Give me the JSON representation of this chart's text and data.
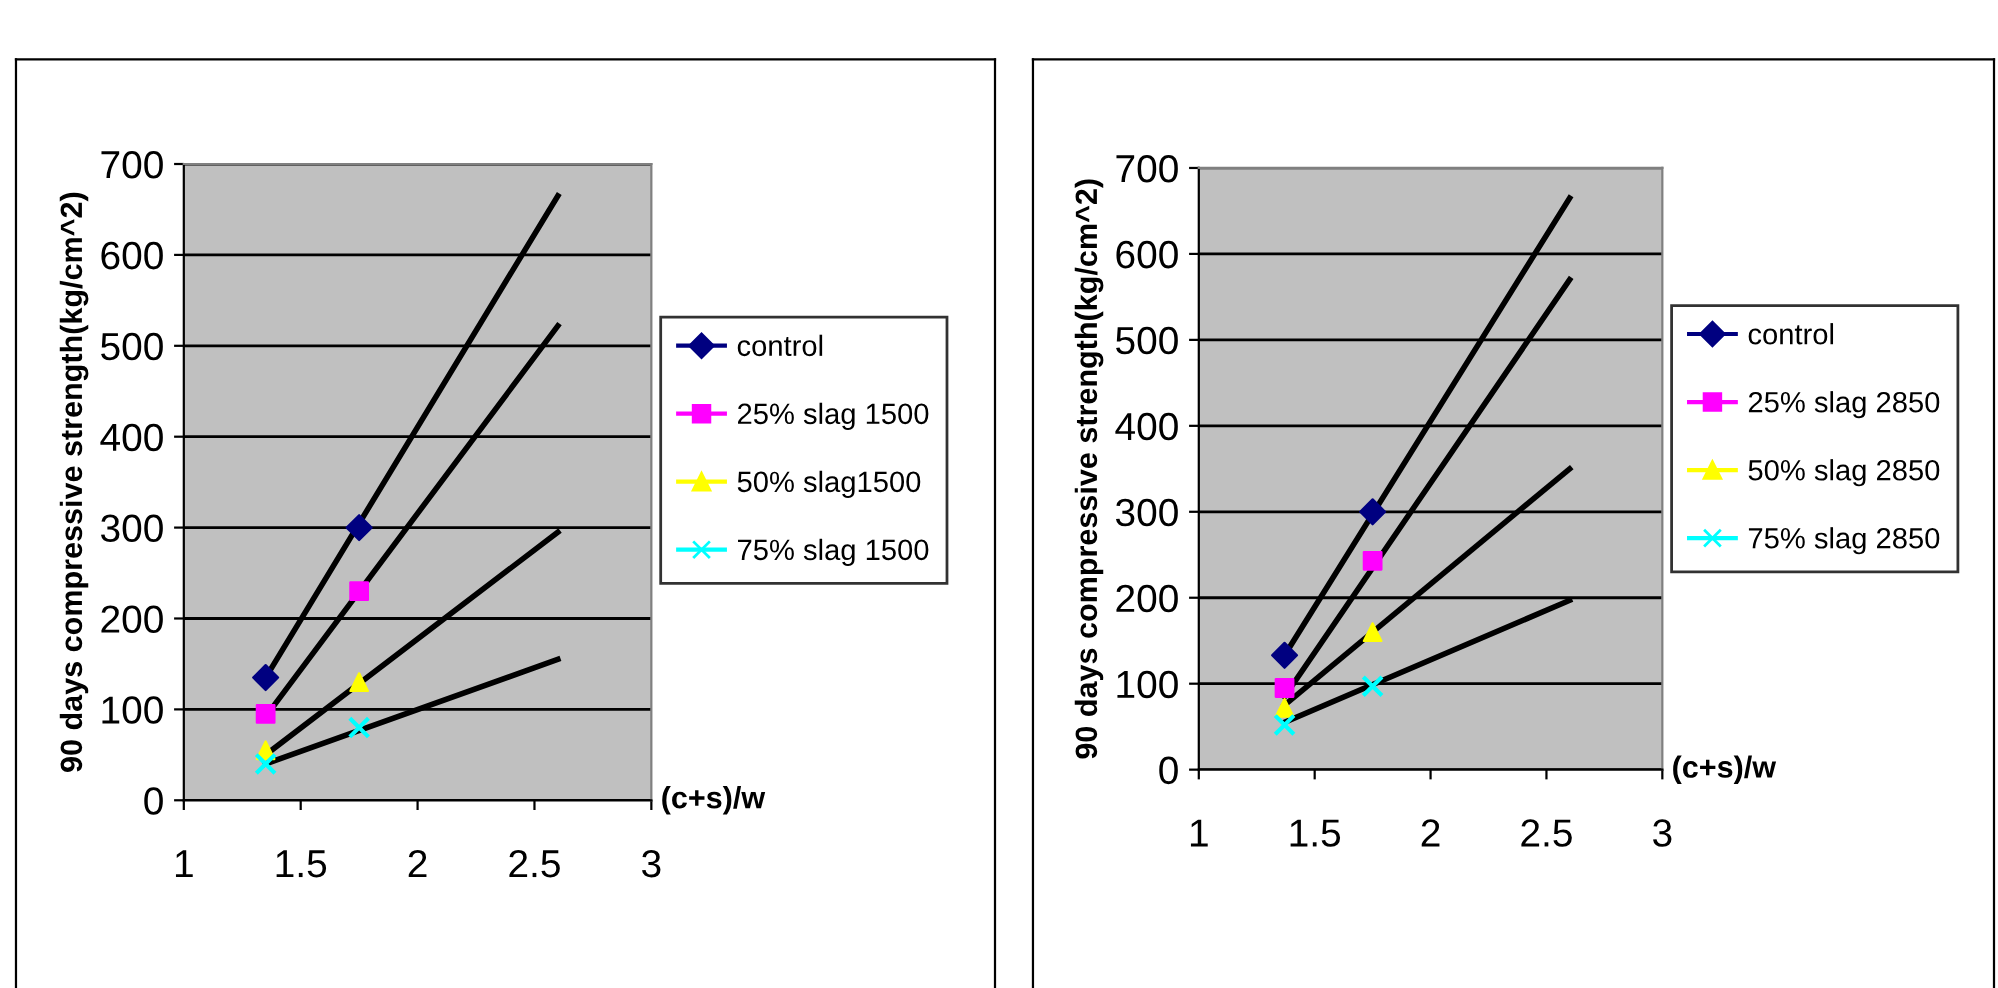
{
  "chart_data": [
    {
      "type": "scatter",
      "xlabel": "(c+s)/w",
      "ylabel": "90 days compressive strength(kg/cm^2)",
      "xlim": [
        1,
        3
      ],
      "xticks": [
        1,
        1.5,
        2,
        2.5,
        3
      ],
      "ylim": [
        0,
        700
      ],
      "yticks": [
        0,
        100,
        200,
        300,
        400,
        500,
        600,
        700
      ],
      "grid": "y",
      "legend": "right",
      "series": [
        {
          "name": "control",
          "color": "#000080",
          "marker": "diamond",
          "x": [
            1.35,
            1.75
          ],
          "values": [
            135,
            300
          ]
        },
        {
          "name": "25% slag 1500",
          "color": "#ff00ff",
          "marker": "square",
          "x": [
            1.35,
            1.75
          ],
          "values": [
            95,
            230
          ]
        },
        {
          "name": "50% slag1500",
          "color": "#ffff00",
          "marker": "triangle",
          "x": [
            1.35,
            1.75
          ],
          "values": [
            55,
            130
          ]
        },
        {
          "name": "75% slag 1500",
          "color": "#00ffff",
          "marker": "cross",
          "x": [
            1.35,
            1.75
          ],
          "values": [
            40,
            80
          ]
        },
        {
          "type": "line",
          "color": "#000000",
          "marker": "none",
          "x": [
            1.35,
            2.6
          ],
          "values": [
            135,
            665
          ]
        },
        {
          "type": "line",
          "color": "#000000",
          "marker": "none",
          "x": [
            1.35,
            2.6
          ],
          "values": [
            92,
            522
          ]
        },
        {
          "type": "line",
          "color": "#000000",
          "marker": "none",
          "x": [
            1.35,
            2.6
          ],
          "values": [
            50,
            295
          ]
        },
        {
          "type": "line",
          "color": "#000000",
          "marker": "none",
          "x": [
            1.35,
            2.6
          ],
          "values": [
            40,
            155
          ]
        }
      ]
    },
    {
      "type": "scatter",
      "xlabel": "(c+s)/w",
      "ylabel": "90 days compressive strength(kg/cm^2)",
      "xlim": [
        1,
        3
      ],
      "xticks": [
        1,
        1.5,
        2,
        2.5,
        3
      ],
      "ylim": [
        0,
        700
      ],
      "yticks": [
        0,
        100,
        200,
        300,
        400,
        500,
        600,
        700
      ],
      "grid": "y",
      "legend": "right",
      "series": [
        {
          "name": "control",
          "color": "#000080",
          "marker": "diamond",
          "x": [
            1.37,
            1.75
          ],
          "values": [
            133,
            300
          ]
        },
        {
          "name": "25% slag 2850",
          "color": "#ff00ff",
          "marker": "square",
          "x": [
            1.37,
            1.75
          ],
          "values": [
            95,
            243
          ]
        },
        {
          "name": "50% slag 2850",
          "color": "#ffff00",
          "marker": "triangle",
          "x": [
            1.37,
            1.75
          ],
          "values": [
            72,
            160
          ]
        },
        {
          "name": "75% slag 2850",
          "color": "#00ffff",
          "marker": "cross",
          "x": [
            1.37,
            1.75
          ],
          "values": [
            52,
            97
          ]
        },
        {
          "type": "line",
          "color": "#000000",
          "marker": "none",
          "x": [
            1.37,
            2.6
          ],
          "values": [
            133,
            665
          ]
        },
        {
          "type": "line",
          "color": "#000000",
          "marker": "none",
          "x": [
            1.37,
            2.6
          ],
          "values": [
            85,
            570
          ]
        },
        {
          "type": "line",
          "color": "#000000",
          "marker": "none",
          "x": [
            1.37,
            2.6
          ],
          "values": [
            75,
            350
          ]
        },
        {
          "type": "line",
          "color": "#000000",
          "marker": "none",
          "x": [
            1.37,
            2.6
          ],
          "values": [
            55,
            197
          ]
        }
      ]
    }
  ]
}
